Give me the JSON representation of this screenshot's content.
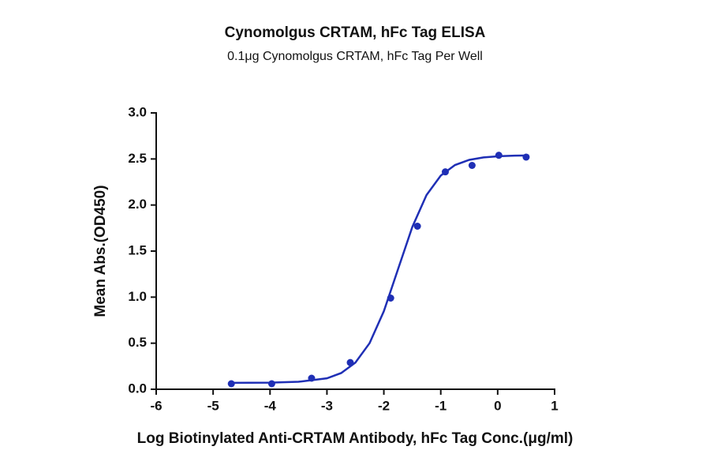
{
  "chart_data": {
    "type": "scatter",
    "title": "Cynomolgus CRTAM, hFc Tag ELISA",
    "subtitle": "0.1μg Cynomolgus CRTAM, hFc Tag Per Well",
    "x_label": "Log Biotinylated Anti-CRTAM Antibody, hFc Tag Conc.(μg/ml)",
    "y_label": "Mean Abs.(OD450)",
    "xlim": [
      -6,
      1
    ],
    "xticks": [
      -6,
      -5,
      -4,
      -3,
      -2,
      -1,
      0,
      1
    ],
    "ylim": [
      0,
      3
    ],
    "yticks": [
      {
        "value": 0,
        "label": "0.0"
      },
      0.5,
      {
        "value": 1,
        "label": "1.0"
      },
      1.5,
      {
        "value": 2,
        "label": "2.0"
      },
      2.5,
      {
        "value": 3,
        "label": "3.0"
      }
    ],
    "series": [
      {
        "color": "#1f2fb5",
        "mode": "markers",
        "x": [
          -4.68,
          -3.97,
          -3.27,
          -2.59,
          -1.88,
          -1.41,
          -0.92,
          -0.45,
          0.02,
          0.5
        ],
        "values": [
          0.06,
          0.06,
          0.12,
          0.29,
          0.99,
          1.77,
          2.36,
          2.43,
          2.54,
          2.52
        ]
      },
      {
        "color": "#1f2fb5",
        "mode": "line",
        "x": [
          -4.7,
          -4.0,
          -3.5,
          -3.0,
          -2.75,
          -2.5,
          -2.25,
          -2.0,
          -1.75,
          -1.5,
          -1.25,
          -1.0,
          -0.75,
          -0.5,
          -0.25,
          0,
          0.3,
          0.55
        ],
        "values": [
          0.07,
          0.072,
          0.081,
          0.119,
          0.176,
          0.289,
          0.501,
          0.847,
          1.305,
          1.762,
          2.109,
          2.32,
          2.434,
          2.49,
          2.517,
          2.529,
          2.536,
          2.538
        ]
      }
    ]
  }
}
